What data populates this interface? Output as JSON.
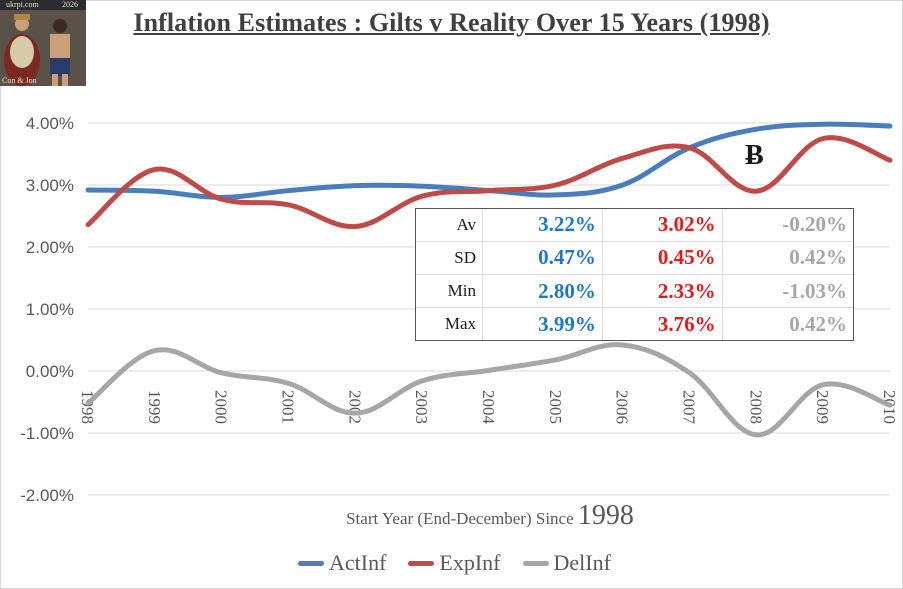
{
  "logo": {
    "top_left": "ukrpi.com",
    "top_right": "2026",
    "caption": "Con & Jon"
  },
  "chart_data": {
    "type": "line",
    "title": "Inflation Estimates : Gilts v Reality Over 15 Years (1998)",
    "xlabel_main": "Start Year (End-December) Since ",
    "xlabel_year": "1998",
    "categories": [
      "1998",
      "1999",
      "2000",
      "2001",
      "2002",
      "2003",
      "2004",
      "2005",
      "2006",
      "2007",
      "2008",
      "2009",
      "2010"
    ],
    "y_ticks": [
      "4.00%",
      "3.00%",
      "2.00%",
      "1.00%",
      "0.00%",
      "-1.00%",
      "-2.00%"
    ],
    "ylim": [
      -0.02,
      0.04
    ],
    "grid": true,
    "legend_position": "bottom",
    "series": [
      {
        "name": "ActInf",
        "color": "#4a7ebb",
        "values": [
          0.0292,
          0.029,
          0.028,
          0.0291,
          0.0299,
          0.0298,
          0.0291,
          0.0284,
          0.03,
          0.036,
          0.039,
          0.0398,
          0.0395
        ]
      },
      {
        "name": "ExpInf",
        "color": "#be4b48",
        "values": [
          0.0236,
          0.0325,
          0.0277,
          0.0268,
          0.0233,
          0.0282,
          0.0291,
          0.03,
          0.0343,
          0.036,
          0.029,
          0.0375,
          0.034
        ]
      },
      {
        "name": "DelInf",
        "color": "#a6a6a6",
        "values": [
          -0.0052,
          0.0033,
          -0.0003,
          -0.002,
          -0.0068,
          -0.0016,
          0.0001,
          0.0018,
          0.0042,
          -0.0003,
          -0.0103,
          -0.0022,
          -0.0055
        ]
      }
    ]
  },
  "annotation": "Ƀ",
  "stats": [
    {
      "label": "Av",
      "act": "3.22%",
      "exp": "3.02%",
      "del": "-0.20%"
    },
    {
      "label": "SD",
      "act": "0.47%",
      "exp": "0.45%",
      "del": "0.42%"
    },
    {
      "label": "Min",
      "act": "2.80%",
      "exp": "2.33%",
      "del": "-1.03%"
    },
    {
      "label": "Max",
      "act": "3.99%",
      "exp": "3.76%",
      "del": "0.42%"
    }
  ],
  "colors": {
    "actinf": "#4a7ebb",
    "expinf": "#be4b48",
    "delinf": "#a6a6a6",
    "table_act": "#1f77c4",
    "table_exp": "#e31a1a",
    "table_del": "#a6a6a6"
  }
}
